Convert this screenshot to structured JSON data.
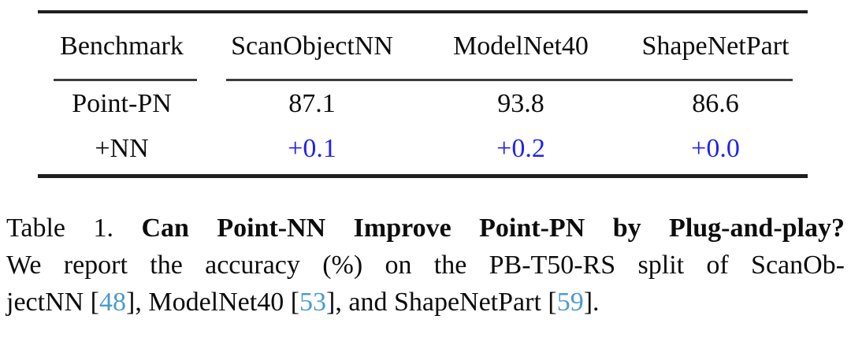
{
  "table": {
    "columns": [
      "Benchmark",
      "ScanObjectNN",
      "ModelNet40",
      "ShapeNetPart"
    ],
    "rows": [
      {
        "label": "Point-PN",
        "values": [
          "87.1",
          "93.8",
          "86.6"
        ]
      },
      {
        "label": "+NN",
        "values": [
          "+0.1",
          "+0.2",
          "+0.0"
        ]
      }
    ]
  },
  "caption": {
    "label": "Table 1.",
    "title": "Can Point-NN Improve Point-PN by Plug-and-play?",
    "line2": "We report the accuracy (%) on the PB-T50-RS split of ScanOb-",
    "line3": {
      "t1": "jectNN [",
      "c1": "48",
      "t2": "], ModelNet40 [",
      "c2": "53",
      "t3": "], and ShapeNetPart [",
      "c3": "59",
      "t4": "]."
    }
  },
  "colors": {
    "text": "#0c0c0c",
    "rule": "#1f1f1f",
    "cmidrule": "#3c3c3c",
    "delta_blue": "#2222f0",
    "cite_blue": "#4c9bcd"
  }
}
